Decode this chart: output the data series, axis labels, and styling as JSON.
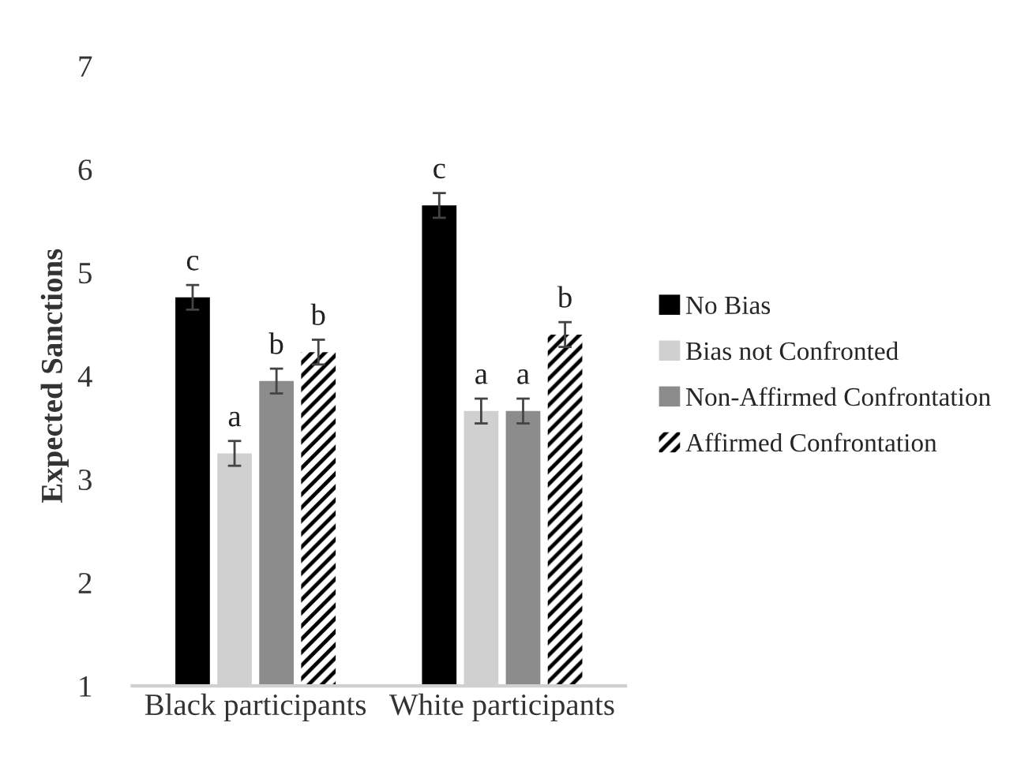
{
  "chart_data": {
    "type": "bar",
    "ylabel": "Expected Sanctions",
    "categories": [
      "Black participants",
      "White participants"
    ],
    "series": [
      {
        "name": "No Bias",
        "color": "#000000",
        "values": [
          4.76,
          5.65
        ],
        "errors": [
          0.12,
          0.12
        ],
        "value_labels": [
          "c",
          "c"
        ]
      },
      {
        "name": "Bias not Confronted",
        "color": "#d0d0d0",
        "values": [
          3.25,
          3.66
        ],
        "errors": [
          0.12,
          0.12
        ],
        "value_labels": [
          "a",
          "a"
        ]
      },
      {
        "name": "Non-Affirmed Confrontation",
        "color": "#8c8c8c",
        "values": [
          3.95,
          3.66
        ],
        "errors": [
          0.12,
          0.12
        ],
        "value_labels": [
          "b",
          "a"
        ]
      },
      {
        "name": "Affirmed Confrontation",
        "color": "#000000",
        "values": [
          4.23,
          4.4
        ],
        "errors": [
          0.12,
          0.12
        ],
        "value_labels": [
          "b",
          "b"
        ]
      }
    ],
    "ylim": [
      1,
      7
    ],
    "yticks": [
      1,
      2,
      3,
      4,
      5,
      6,
      7
    ],
    "grid": false,
    "legend": "right"
  }
}
